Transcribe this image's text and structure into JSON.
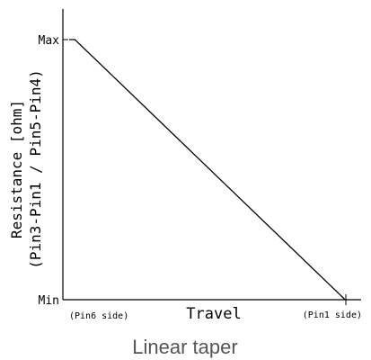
{
  "chart_data": {
    "type": "line",
    "title": "",
    "caption": "Linear taper",
    "ylabel_line1": "Resistance [ohm]",
    "ylabel_line2": "(Pin3-Pin1 / Pin5-Pin4)",
    "xlabel": "Travel",
    "x_tick_labels": [
      "(Pin6 side)",
      "(Pin1 side)"
    ],
    "y_tick_labels": [
      "Min",
      "Max"
    ],
    "series": [
      {
        "x": [
          0,
          0.02,
          0.96
        ],
        "y": [
          1,
          1,
          0
        ]
      }
    ]
  }
}
